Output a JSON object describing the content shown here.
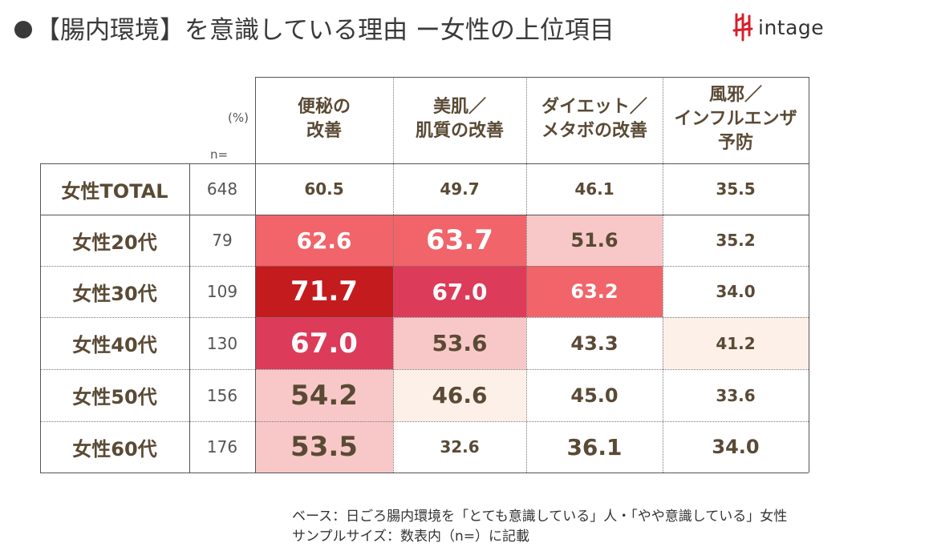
{
  "title": "【腸内環境】を意識している理由 ー女性の上位項目",
  "logo": {
    "text": "intage",
    "mark_color": "#d8202a"
  },
  "unit_label": "(%)",
  "n_label": "n=",
  "columns": [
    "便秘の\n改善",
    "美肌／\n肌質の改善",
    "ダイエット／\nメタボの改善",
    "風邪／\nインフルエンザ\n予防"
  ],
  "rows": [
    {
      "label": "女性TOTAL",
      "n": "648",
      "values": [
        "60.5",
        "49.7",
        "46.1",
        "35.5"
      ]
    },
    {
      "label": "女性20代",
      "n": "79",
      "values": [
        "62.6",
        "63.7",
        "51.6",
        "35.2"
      ]
    },
    {
      "label": "女性30代",
      "n": "109",
      "values": [
        "71.7",
        "67.0",
        "63.2",
        "34.0"
      ]
    },
    {
      "label": "女性40代",
      "n": "130",
      "values": [
        "67.0",
        "53.6",
        "43.3",
        "41.2"
      ]
    },
    {
      "label": "女性50代",
      "n": "156",
      "values": [
        "54.2",
        "46.6",
        "45.0",
        "33.6"
      ]
    },
    {
      "label": "女性60代",
      "n": "176",
      "values": [
        "53.5",
        "32.6",
        "36.1",
        "34.0"
      ]
    }
  ],
  "cell_styles": [
    [
      {
        "bg": "#ffffff",
        "fg": "#5a4a35",
        "size": "s"
      },
      {
        "bg": "#ffffff",
        "fg": "#5a4a35",
        "size": "s"
      },
      {
        "bg": "#ffffff",
        "fg": "#5a4a35",
        "size": "s"
      },
      {
        "bg": "#ffffff",
        "fg": "#5a4a35",
        "size": "s"
      }
    ],
    [
      {
        "bg": "#f0646a",
        "fg": "#ffffff",
        "size": "l"
      },
      {
        "bg": "#f0646a",
        "fg": "#ffffff",
        "size": "xl"
      },
      {
        "bg": "#f8c8c8",
        "fg": "#5a4a35",
        "size": "m"
      },
      {
        "bg": "#ffffff",
        "fg": "#5a4a35",
        "size": "s"
      }
    ],
    [
      {
        "bg": "#c41b1e",
        "fg": "#ffffff",
        "size": "xl"
      },
      {
        "bg": "#dc3b5a",
        "fg": "#ffffff",
        "size": "l"
      },
      {
        "bg": "#f0646a",
        "fg": "#ffffff",
        "size": "m"
      },
      {
        "bg": "#ffffff",
        "fg": "#5a4a35",
        "size": "s"
      }
    ],
    [
      {
        "bg": "#dc3b5a",
        "fg": "#ffffff",
        "size": "xl"
      },
      {
        "bg": "#f8c8c8",
        "fg": "#5a4a35",
        "size": "l"
      },
      {
        "bg": "#ffffff",
        "fg": "#5a4a35",
        "size": "m"
      },
      {
        "bg": "#fdf0e8",
        "fg": "#5a4a35",
        "size": "s"
      }
    ],
    [
      {
        "bg": "#f8c8c8",
        "fg": "#5a4a35",
        "size": "xl"
      },
      {
        "bg": "#fdf0e8",
        "fg": "#5a4a35",
        "size": "l"
      },
      {
        "bg": "#ffffff",
        "fg": "#5a4a35",
        "size": "m"
      },
      {
        "bg": "#ffffff",
        "fg": "#5a4a35",
        "size": "s"
      }
    ],
    [
      {
        "bg": "#f8c8c8",
        "fg": "#5a4a35",
        "size": "xl"
      },
      {
        "bg": "#ffffff",
        "fg": "#5a4a35",
        "size": "s"
      },
      {
        "bg": "#ffffff",
        "fg": "#5a4a35",
        "size": "l"
      },
      {
        "bg": "#ffffff",
        "fg": "#5a4a35",
        "size": "m"
      }
    ]
  ],
  "footnote": {
    "base": "ベース：日ごろ腸内環境を「とても意識している」人・「やや意識している」女性",
    "sample": "サンプルサイズ：数表内（n=）に記載"
  },
  "chart_data": {
    "type": "table",
    "title": "【腸内環境】を意識している理由 ー女性の上位項目",
    "unit": "%",
    "categories": [
      "便秘の改善",
      "美肌／肌質の改善",
      "ダイエット／メタボの改善",
      "風邪／インフルエンザ予防"
    ],
    "series": [
      {
        "name": "女性TOTAL",
        "n": 648,
        "values": [
          60.5,
          49.7,
          46.1,
          35.5
        ]
      },
      {
        "name": "女性20代",
        "n": 79,
        "values": [
          62.6,
          63.7,
          51.6,
          35.2
        ]
      },
      {
        "name": "女性30代",
        "n": 109,
        "values": [
          71.7,
          67.0,
          63.2,
          34.0
        ]
      },
      {
        "name": "女性40代",
        "n": 130,
        "values": [
          67.0,
          53.6,
          43.3,
          41.2
        ]
      },
      {
        "name": "女性50代",
        "n": 156,
        "values": [
          54.2,
          46.6,
          45.0,
          33.6
        ]
      },
      {
        "name": "女性60代",
        "n": 176,
        "values": [
          53.5,
          32.6,
          36.1,
          34.0
        ]
      }
    ]
  }
}
